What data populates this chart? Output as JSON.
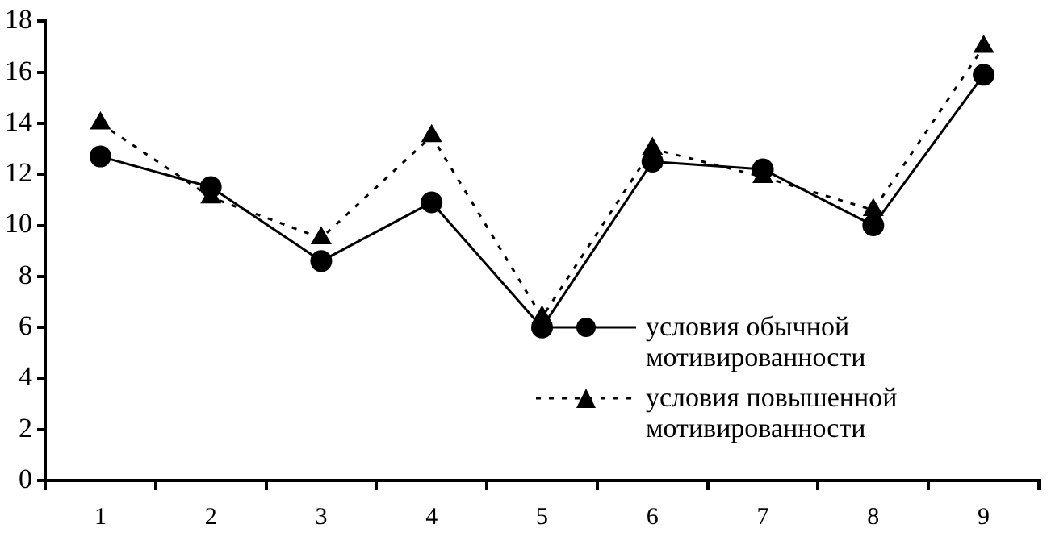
{
  "chart_data": {
    "type": "line",
    "categories": [
      "1",
      "2",
      "3",
      "4",
      "5",
      "6",
      "7",
      "8",
      "9"
    ],
    "series": [
      {
        "name": "условия обычной мотивированности",
        "color": "#000000",
        "marker": "circle",
        "line_style": "solid",
        "values": [
          12.7,
          11.5,
          8.6,
          10.9,
          6.0,
          12.5,
          12.2,
          10.0,
          15.9
        ]
      },
      {
        "name": "условия повышенной мотивированности",
        "color": "#000000",
        "marker": "triangle",
        "line_style": "dotted",
        "values": [
          14.0,
          11.1,
          9.5,
          13.5,
          6.4,
          13.0,
          11.9,
          10.6,
          17.0
        ]
      }
    ],
    "ylim": [
      0,
      18
    ],
    "yticks": [
      0,
      2,
      4,
      6,
      8,
      10,
      12,
      14,
      16,
      18
    ],
    "grid": false,
    "legend": "bottom right"
  }
}
